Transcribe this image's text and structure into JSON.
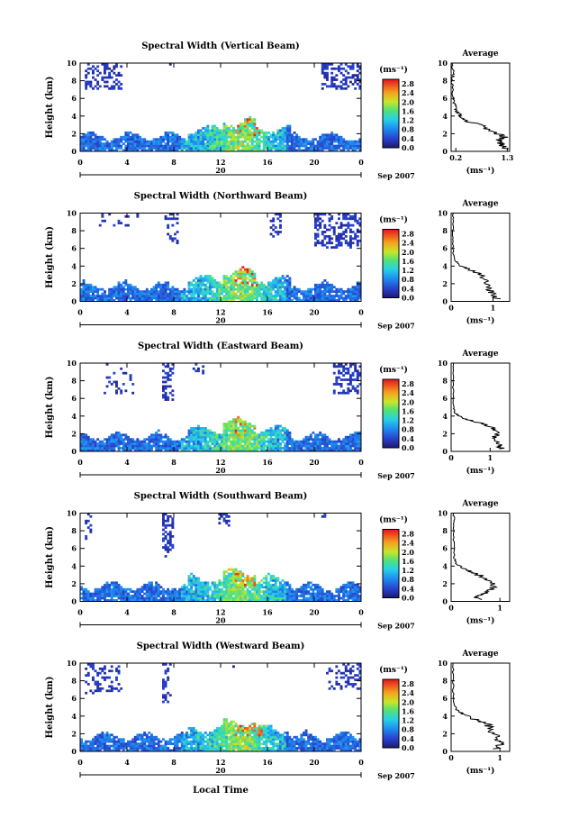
{
  "chart_data": [
    {
      "type": "heatmap",
      "title": "Spectral Width (Vertical Beam)",
      "ylabel": "Height (km)",
      "ylim": [
        0,
        10
      ],
      "xlim": [
        0,
        24
      ],
      "x_ticks": [
        "0",
        "4",
        "8",
        "12",
        "16",
        "20",
        "0"
      ],
      "y_ticks": [
        "0",
        "2",
        "4",
        "6",
        "8",
        "10"
      ],
      "colorbar": {
        "unit": "(ms⁻¹)",
        "ticks": [
          "0.0",
          "0.4",
          "0.8",
          "1.2",
          "1.6",
          "2.0",
          "2.4",
          "2.8"
        ],
        "range": [
          0,
          3.0
        ]
      },
      "average": {
        "title": "Average",
        "xlabel": "(ms⁻¹)",
        "x_ticks": [
          "0.2",
          "1.3"
        ],
        "xlim": [
          0.1,
          1.35
        ],
        "profile": [
          [
            1.25,
            0.3
          ],
          [
            1.2,
            0.8
          ],
          [
            1.1,
            1.2
          ],
          [
            1.25,
            1.6
          ],
          [
            1.0,
            2.2
          ],
          [
            0.8,
            2.8
          ],
          [
            0.45,
            3.4
          ],
          [
            0.3,
            4.0
          ],
          [
            0.22,
            4.6
          ],
          [
            0.18,
            5.2
          ],
          [
            0.14,
            6.0
          ],
          [
            0.12,
            8.0
          ],
          [
            0.15,
            9.0
          ],
          [
            0.13,
            10.0
          ]
        ]
      },
      "date_row": {
        "label": "20",
        "month": "Sep 2007"
      }
    },
    {
      "type": "heatmap",
      "title": "Spectral Width (Northward Beam)",
      "ylabel": "Height (km)",
      "ylim": [
        0,
        10
      ],
      "xlim": [
        0,
        24
      ],
      "x_ticks": [
        "0",
        "4",
        "8",
        "12",
        "16",
        "20",
        "0"
      ],
      "y_ticks": [
        "0",
        "2",
        "4",
        "6",
        "8",
        "10"
      ],
      "colorbar": {
        "unit": "(ms⁻¹)",
        "ticks": [
          "0.0",
          "0.4",
          "0.8",
          "1.2",
          "1.6",
          "2.0",
          "2.4",
          "2.8"
        ],
        "range": [
          0,
          3.0
        ]
      },
      "average": {
        "title": "Average",
        "xlabel": "(ms⁻¹)",
        "x_ticks": [
          "0",
          "1"
        ],
        "xlim": [
          0,
          1.4
        ],
        "profile": [
          [
            1.1,
            0.3
          ],
          [
            1.0,
            0.8
          ],
          [
            0.9,
            1.4
          ],
          [
            0.85,
            2.2
          ],
          [
            0.7,
            3.0
          ],
          [
            0.45,
            3.6
          ],
          [
            0.25,
            4.0
          ],
          [
            0.1,
            4.6
          ],
          [
            0.05,
            5.5
          ],
          [
            0.04,
            7.0
          ],
          [
            0.05,
            9.0
          ],
          [
            0.04,
            10.0
          ]
        ]
      },
      "date_row": {
        "label": "20",
        "month": "Sep 2007"
      }
    },
    {
      "type": "heatmap",
      "title": "Spectral Width (Eastward Beam)",
      "ylabel": "Height (km)",
      "ylim": [
        0,
        10
      ],
      "xlim": [
        0,
        24
      ],
      "x_ticks": [
        "0",
        "4",
        "8",
        "12",
        "16",
        "20",
        "0"
      ],
      "y_ticks": [
        "0",
        "2",
        "4",
        "6",
        "8",
        "10"
      ],
      "colorbar": {
        "unit": "(ms⁻¹)",
        "ticks": [
          "0.0",
          "0.4",
          "0.8",
          "1.2",
          "1.6",
          "2.0",
          "2.4",
          "2.8"
        ],
        "range": [
          0,
          3.0
        ]
      },
      "average": {
        "title": "Average",
        "xlabel": "(ms⁻¹)",
        "x_ticks": [
          "0",
          "1"
        ],
        "xlim": [
          0,
          1.5
        ],
        "profile": [
          [
            1.3,
            0.3
          ],
          [
            1.2,
            0.8
          ],
          [
            1.1,
            1.5
          ],
          [
            1.2,
            2.2
          ],
          [
            1.0,
            2.8
          ],
          [
            0.6,
            3.4
          ],
          [
            0.3,
            3.8
          ],
          [
            0.1,
            4.3
          ],
          [
            0.06,
            5.0
          ],
          [
            0.05,
            7.0
          ],
          [
            0.06,
            9.0
          ],
          [
            0.05,
            10.0
          ]
        ]
      },
      "date_row": {
        "label": "20",
        "month": "Sep 2007"
      }
    },
    {
      "type": "heatmap",
      "title": "Spectral Width (Southward Beam)",
      "ylabel": "Height (km)",
      "ylim": [
        0,
        10
      ],
      "xlim": [
        0,
        24
      ],
      "x_ticks": [
        "0",
        "4",
        "8",
        "12",
        "16",
        "20",
        "0"
      ],
      "y_ticks": [
        "0",
        "2",
        "4",
        "6",
        "8",
        "10"
      ],
      "colorbar": {
        "unit": "(ms⁻¹)",
        "ticks": [
          "0.0",
          "0.4",
          "0.8",
          "1.2",
          "1.6",
          "2.0",
          "2.4",
          "2.8"
        ],
        "range": [
          0,
          3.0
        ]
      },
      "average": {
        "title": "Average",
        "xlabel": "(ms⁻¹)",
        "x_ticks": [
          "0",
          "1"
        ],
        "xlim": [
          0,
          1.2
        ],
        "profile": [
          [
            0.6,
            0.2
          ],
          [
            0.5,
            0.6
          ],
          [
            0.7,
            1.0
          ],
          [
            0.85,
            1.6
          ],
          [
            0.8,
            2.4
          ],
          [
            0.55,
            3.0
          ],
          [
            0.3,
            3.6
          ],
          [
            0.12,
            4.2
          ],
          [
            0.06,
            5.0
          ],
          [
            0.05,
            7.0
          ],
          [
            0.06,
            9.0
          ],
          [
            0.05,
            10.0
          ]
        ]
      },
      "date_row": {
        "label": "20",
        "month": "Sep 2007"
      }
    },
    {
      "type": "heatmap",
      "title": "Spectral Width (Westward Beam)",
      "ylabel": "Height (km)",
      "ylim": [
        0,
        10
      ],
      "xlim": [
        0,
        24
      ],
      "x_ticks": [
        "0",
        "4",
        "8",
        "12",
        "16",
        "20",
        "0"
      ],
      "y_ticks": [
        "0",
        "2",
        "4",
        "6",
        "8",
        "10"
      ],
      "colorbar": {
        "unit": "(ms⁻¹)",
        "ticks": [
          "0.0",
          "0.4",
          "0.8",
          "1.2",
          "1.6",
          "2.0",
          "2.4",
          "2.8"
        ],
        "range": [
          0,
          3.0
        ]
      },
      "average": {
        "title": "Average",
        "xlabel": "(ms⁻¹)",
        "x_ticks": [
          "0",
          "1"
        ],
        "xlim": [
          0,
          1.2
        ],
        "profile": [
          [
            0.9,
            0.3
          ],
          [
            1.0,
            0.8
          ],
          [
            0.95,
            1.4
          ],
          [
            0.85,
            2.2
          ],
          [
            0.75,
            3.0
          ],
          [
            0.5,
            3.6
          ],
          [
            0.25,
            4.2
          ],
          [
            0.1,
            4.8
          ],
          [
            0.05,
            6.0
          ],
          [
            0.04,
            8.0
          ],
          [
            0.04,
            10.0
          ]
        ]
      },
      "date_row": {
        "label": "20",
        "month": "Sep 2007"
      }
    }
  ],
  "xlabel": "Local Time"
}
